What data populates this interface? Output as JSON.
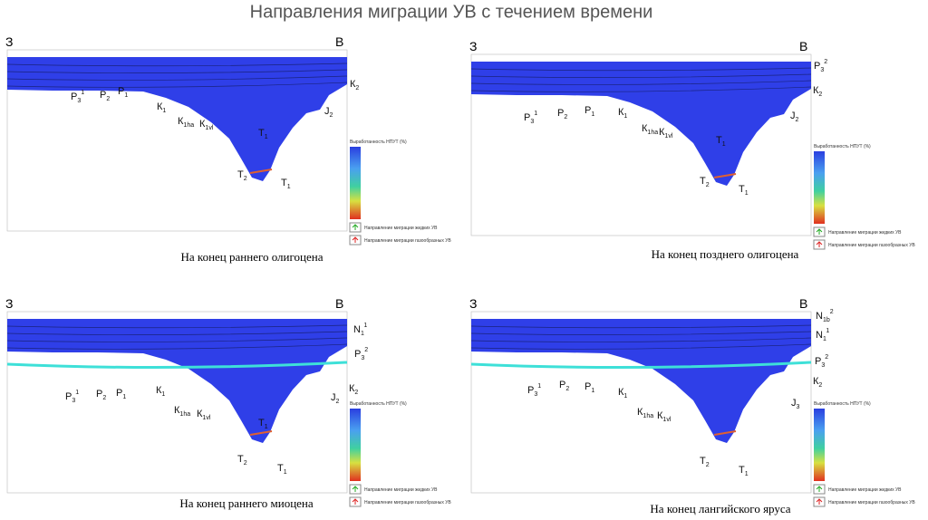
{
  "title": "Направления миграции УВ с течением времени",
  "panels": [
    {
      "caption": "На конец раннего олигоцена",
      "west": "З",
      "east": "В",
      "legend_title": "Выработанность НПУТ (%)",
      "liquid": "Направление миграции жидких УВ",
      "gas": "Направление миграции газообразных УВ",
      "labels": [
        {
          "base": "Р",
          "sub": "3",
          "sup": "1"
        },
        {
          "base": "Р",
          "sub": "2"
        },
        {
          "base": "Р",
          "sub": "1"
        },
        {
          "base": "К",
          "sub": "1"
        },
        {
          "base": "К",
          "sub": "1ha"
        },
        {
          "base": "К",
          "sub": "1vl"
        },
        {
          "base": "Т",
          "sub": "1"
        },
        {
          "base": "Т",
          "sub": "2"
        },
        {
          "base": "Т",
          "sub": "1"
        },
        {
          "base": "J",
          "sub": "2"
        },
        {
          "base": "К",
          "sub": "2"
        }
      ]
    },
    {
      "caption": "На конец позднего олигоцена",
      "west": "З",
      "east": "В",
      "legend_title": "Выработанность НПУТ (%)",
      "liquid": "Направление миграции жидких УВ",
      "gas": "Направление миграции газообразных УВ",
      "labels": [
        {
          "base": "Р",
          "sub": "3",
          "sup": "1"
        },
        {
          "base": "Р",
          "sub": "2"
        },
        {
          "base": "Р",
          "sub": "1"
        },
        {
          "base": "К",
          "sub": "1"
        },
        {
          "base": "К",
          "sub": "1ha"
        },
        {
          "base": "К",
          "sub": "1vl"
        },
        {
          "base": "Т",
          "sub": "1"
        },
        {
          "base": "Т",
          "sub": "2"
        },
        {
          "base": "Т",
          "sub": "1"
        },
        {
          "base": "J",
          "sub": "2"
        },
        {
          "base": "К",
          "sub": "2"
        },
        {
          "base": "Р",
          "sub": "3",
          "sup": "2"
        }
      ]
    },
    {
      "caption": "На конец раннего миоцена",
      "west": "З",
      "east": "В",
      "legend_title": "Выработанность НПУТ (%)",
      "liquid": "Направление миграции жидких УВ",
      "gas": "Направление миграции газообразных УВ",
      "labels": [
        {
          "base": "Р",
          "sub": "3",
          "sup": "1"
        },
        {
          "base": "Р",
          "sub": "2"
        },
        {
          "base": "Р",
          "sub": "1"
        },
        {
          "base": "К",
          "sub": "1"
        },
        {
          "base": "К",
          "sub": "1ha"
        },
        {
          "base": "К",
          "sub": "1vl"
        },
        {
          "base": "Т",
          "sub": "1"
        },
        {
          "base": "Т",
          "sub": "2"
        },
        {
          "base": "Т",
          "sub": "1"
        },
        {
          "base": "J",
          "sub": "2"
        },
        {
          "base": "К",
          "sub": "2"
        },
        {
          "base": "N",
          "sub": "1",
          "sup": "1"
        },
        {
          "base": "Р",
          "sub": "3",
          "sup": "2"
        }
      ]
    },
    {
      "caption": "На конец лангийского яруса",
      "west": "З",
      "east": "В",
      "legend_title": "Выработанность НПУТ (%)",
      "liquid": "Направление миграции жидких УВ",
      "gas": "Направление миграции газообразных УВ",
      "labels": [
        {
          "base": "Р",
          "sub": "3",
          "sup": "1"
        },
        {
          "base": "Р",
          "sub": "2"
        },
        {
          "base": "Р",
          "sub": "1"
        },
        {
          "base": "К",
          "sub": "1"
        },
        {
          "base": "К",
          "sub": "1ha"
        },
        {
          "base": "К",
          "sub": "1vl"
        },
        {
          "base": "Т",
          "sub": "2"
        },
        {
          "base": "Т",
          "sub": "1"
        },
        {
          "base": "J",
          "sub": "3"
        },
        {
          "base": "К",
          "sub": "2"
        },
        {
          "base": "N",
          "sub": "1",
          "sup": "1"
        },
        {
          "base": "N",
          "sub": "1b",
          "sup": "2"
        },
        {
          "base": "Р",
          "sub": "3",
          "sup": "2"
        }
      ]
    }
  ]
}
